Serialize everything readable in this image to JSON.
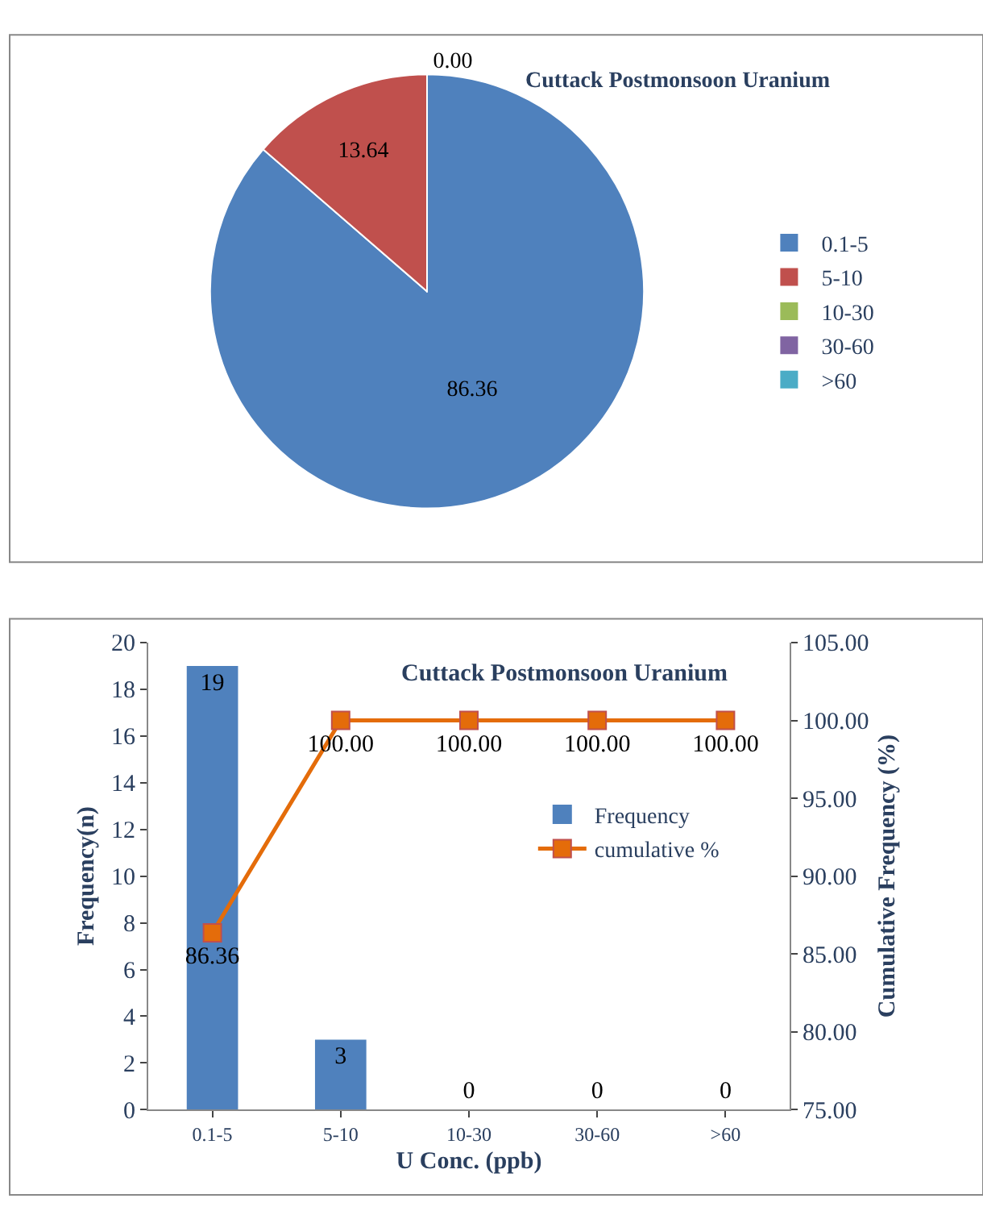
{
  "chart_data": [
    {
      "type": "pie",
      "title": "Cuttack Postmonsoon Uranium",
      "categories": [
        "0.1-5",
        "5-10",
        "10-30",
        "30-60",
        ">60"
      ],
      "values": [
        86.36,
        13.64,
        0,
        0,
        0
      ],
      "colors": [
        "#4f81bd",
        "#c0504d",
        "#9bbb59",
        "#8064a2",
        "#4bacc6"
      ],
      "value_labels": [
        "86.36",
        "13.64",
        "0.00",
        null,
        null
      ],
      "legend": "right"
    },
    {
      "type": "bar",
      "title": "Cuttack Postmonsoon Uranium",
      "xlabel": "U Conc. (ppb)",
      "ylabel": "Frequency(n)",
      "y2label": "Cumulative Frequency (%)",
      "categories": [
        "0.1-5",
        "5-10",
        "10-30",
        "30-60",
        ">60"
      ],
      "series": [
        {
          "name": "Frequency",
          "type": "bar",
          "color": "#4f81bd",
          "values": [
            19,
            3,
            0,
            0,
            0
          ],
          "value_labels": [
            "19",
            "3",
            "0",
            "0",
            "0"
          ]
        },
        {
          "name": "cumulative %",
          "type": "line",
          "axis": "y2",
          "color": "#e46c0a",
          "marker": "square",
          "values": [
            86.36,
            100,
            100,
            100,
            100
          ],
          "value_labels": [
            "86.36",
            "100.00",
            "100.00",
            "100.00",
            "100.00"
          ]
        }
      ],
      "ylim": [
        0,
        20
      ],
      "yticks": [
        0,
        2,
        4,
        6,
        8,
        10,
        12,
        14,
        16,
        18,
        20
      ],
      "y2lim": [
        75,
        105
      ],
      "y2ticks": [
        {
          "value": 75,
          "label": "75.00"
        },
        {
          "value": 80,
          "label": "80.00"
        },
        {
          "value": 85,
          "label": "85.00"
        },
        {
          "value": 90,
          "label": "90.00"
        },
        {
          "value": 95,
          "label": "95.00"
        },
        {
          "value": 100,
          "label": "100.00"
        },
        {
          "value": 105,
          "label": "105.00"
        }
      ],
      "legend": "right"
    }
  ]
}
